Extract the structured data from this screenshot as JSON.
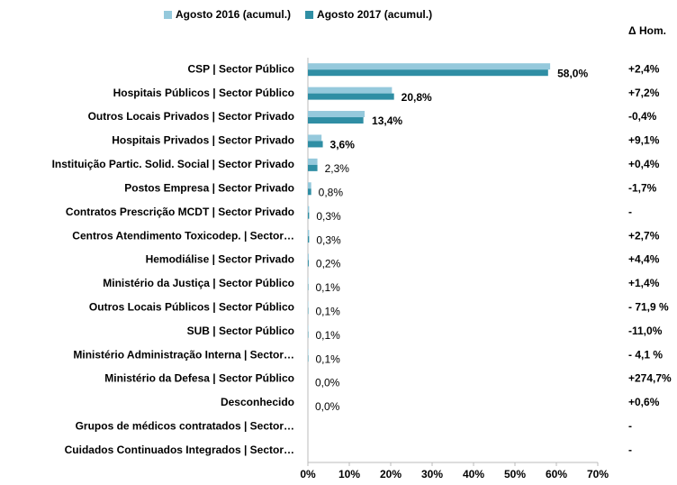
{
  "chart_data": {
    "type": "bar",
    "orientation": "horizontal",
    "categories": [
      "CSP | Sector Público",
      "Hospitais Públicos | Sector Público",
      "Outros Locais Privados | Sector Privado",
      "Hospitais Privados | Sector Privado",
      "Instituição Partic. Solid. Social | Sector Privado",
      "Postos Empresa | Sector Privado",
      "Contratos Prescrição MCDT | Sector Privado",
      "Centros Atendimento Toxicodep. | Sector…",
      "Hemodiálise | Sector Privado",
      "Ministério da Justiça | Sector Público",
      "Outros Locais Públicos | Sector Público",
      "SUB | Sector Público",
      "Ministério Administração Interna | Sector…",
      "Ministério da Defesa | Sector Público",
      "Desconhecido",
      "Grupos de médicos contratados | Sector…",
      "Cuidados Continuados Integrados | Sector…"
    ],
    "series": [
      {
        "name": "Agosto 2016 (acumul.)",
        "color": "#95c9dc",
        "values": [
          58.5,
          20.3,
          13.7,
          3.3,
          2.3,
          0.8,
          0.3,
          0.3,
          0.2,
          0.1,
          0.1,
          0.1,
          0.1,
          0.0,
          0.0,
          null,
          null
        ]
      },
      {
        "name": "Agosto 2017 (acumul.)",
        "color": "#2f8ea4",
        "values": [
          58.0,
          20.8,
          13.4,
          3.6,
          2.3,
          0.8,
          0.3,
          0.3,
          0.2,
          0.1,
          0.1,
          0.1,
          0.1,
          0.0,
          0.0,
          null,
          null
        ],
        "value_labels": [
          "58,0%",
          "20,8%",
          "13,4%",
          "3,6%",
          "2,3%",
          "0,8%",
          "0,3%",
          "0,3%",
          "0,2%",
          "0,1%",
          "0,1%",
          "0,1%",
          "0,1%",
          "0,0%",
          "0,0%",
          null,
          null
        ]
      }
    ],
    "delta_header": "Δ Hom.",
    "delta": [
      "+2,4%",
      "+7,2%",
      "-0,4%",
      "+9,1%",
      "+0,4%",
      "-1,7%",
      "-",
      "+2,7%",
      "+4,4%",
      "+1,4%",
      "- 71,9 %",
      "-11,0%",
      "- 4,1 %",
      "+274,7%",
      "+0,6%",
      "-",
      "-"
    ],
    "xlim": [
      0,
      70
    ],
    "xticks": [
      {
        "value": 0,
        "label": "0%"
      },
      {
        "value": 10,
        "label": "10%"
      },
      {
        "value": 20,
        "label": "20%"
      },
      {
        "value": 30,
        "label": "30%"
      },
      {
        "value": 40,
        "label": "40%"
      },
      {
        "value": 50,
        "label": "50%"
      },
      {
        "value": 60,
        "label": "60%"
      },
      {
        "value": 70,
        "label": "70%"
      }
    ],
    "grid": false,
    "legend": "top"
  }
}
